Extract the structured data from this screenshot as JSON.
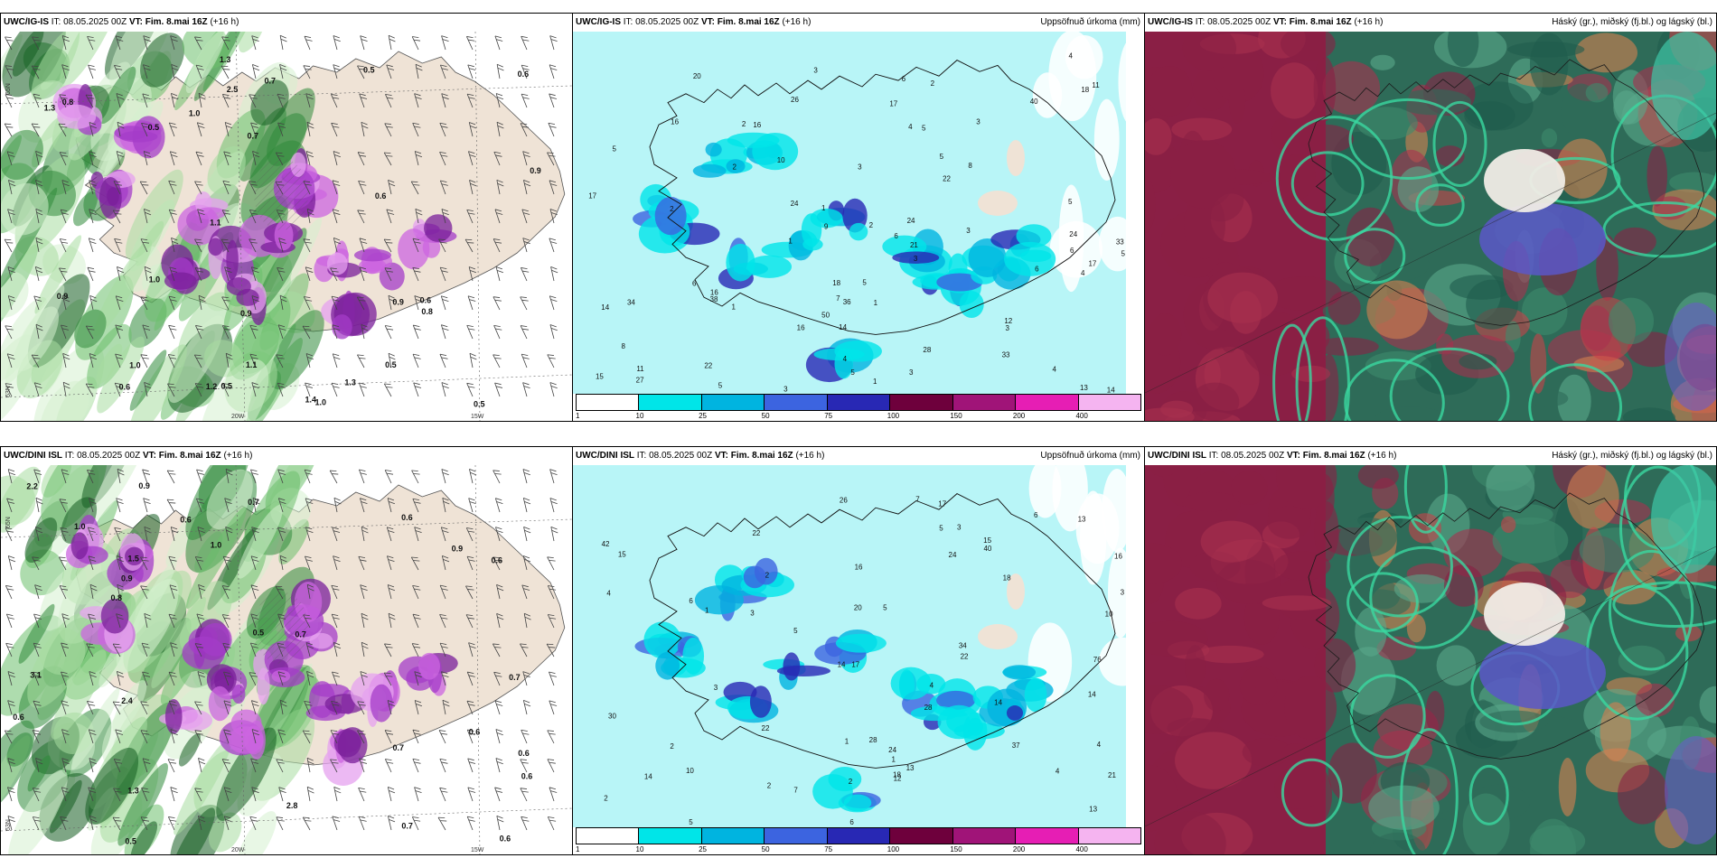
{
  "panels": [
    {
      "id": "p1",
      "model": "UWC/IG-IS",
      "it_label": "IT:",
      "it_value": "08.05.2025 00Z",
      "vt_label": "VT:",
      "vt_value": "Fim. 8.mai 16Z",
      "lead": "(+16 h)",
      "right_title": "",
      "type": "wind"
    },
    {
      "id": "p2",
      "model": "UWC/IG-IS",
      "it_label": "IT:",
      "it_value": "08.05.2025 00Z",
      "vt_label": "VT:",
      "vt_value": "Fim. 8.mai 16Z",
      "lead": "(+16 h)",
      "right_title": "Uppsöfnuð úrkoma (mm)",
      "type": "precip"
    },
    {
      "id": "p3",
      "model": "UWC/IG-IS",
      "it_label": "IT:",
      "it_value": "08.05.2025 00Z",
      "vt_label": "VT:",
      "vt_value": "Fim. 8.mai 16Z",
      "lead": "(+16 h)",
      "right_title": "Háský (gr.), miðský (fj.bl.) og lágský (bl.)",
      "type": "cloud"
    },
    {
      "id": "p4",
      "model": "UWC/DINI ISL",
      "it_label": "IT:",
      "it_value": "08.05.2025 00Z",
      "vt_label": "VT:",
      "vt_value": "Fim. 8.mai 16Z",
      "lead": "(+16 h)",
      "right_title": "",
      "type": "wind"
    },
    {
      "id": "p5",
      "model": "UWC/DINI ISL",
      "it_label": "IT:",
      "it_value": "08.05.2025 00Z",
      "vt_label": "VT:",
      "vt_value": "Fim. 8.mai 16Z",
      "lead": "(+16 h)",
      "right_title": "Uppsöfnuð úrkoma (mm)",
      "type": "precip"
    },
    {
      "id": "p6",
      "model": "UWC/DINI ISL",
      "it_label": "IT:",
      "it_value": "08.05.2025 00Z",
      "vt_label": "VT:",
      "vt_value": "Fim. 8.mai 16Z",
      "lead": "(+16 h)",
      "right_title": "Háský (gr.), miðský (fj.bl.) og lágský (bl.)",
      "type": "cloud"
    }
  ],
  "colorbar": {
    "colors": [
      "#ffffff",
      "#00e5e8",
      "#00b4e0",
      "#3c64e0",
      "#2828b4",
      "#6e003c",
      "#a01478",
      "#e61eb4",
      "#f5b4f0"
    ],
    "labels": [
      "1",
      "10",
      "25",
      "50",
      "75",
      "100",
      "150",
      "200",
      "400"
    ]
  },
  "wind_labels": {
    "p1": {
      "lat_labels": [
        "65N",
        "63N"
      ],
      "lon_labels": [
        "20W",
        "15W"
      ],
      "values": [
        "0.8",
        "0.9",
        "1.0",
        "0.6",
        "0.9",
        "0.7",
        "0.5",
        "0.9",
        "0.6",
        "0.5",
        "0.7",
        "0.6",
        "0.5",
        "1.0",
        "1.3",
        "0.8",
        "1.1",
        "1.0",
        "0.6",
        "0.9",
        "1.3",
        "1.4",
        "1.3",
        "1.0",
        "0.5",
        "1.2",
        "1.1",
        "2.5",
        "0.5"
      ]
    },
    "p4": {
      "lat_labels": [
        "65N",
        "63N"
      ],
      "lon_labels": [
        "20W",
        "15W"
      ],
      "values": [
        "0.6",
        "0.7",
        "0.6",
        "0.7",
        "0.8",
        "0.7",
        "0.6",
        "0.5",
        "0.6",
        "0.7",
        "1.0",
        "0.6",
        "0.6",
        "0.9",
        "1.0",
        "0.7",
        "0.6",
        "1.3",
        "0.9",
        "0.5",
        "0.6",
        "0.9",
        "2.4",
        "1.5",
        "2.2",
        "2.8",
        "3.1"
      ]
    }
  },
  "precip_values": {
    "p2": [
      "8",
      "5",
      "4",
      "1",
      "5",
      "5",
      "2",
      "1",
      "3",
      "6",
      "2",
      "3",
      "5",
      "12",
      "8",
      "6",
      "7",
      "4",
      "3",
      "4",
      "3",
      "2",
      "4",
      "1",
      "17",
      "14",
      "17",
      "18",
      "16",
      "10",
      "17",
      "11",
      "13",
      "20",
      "16",
      "14",
      "16",
      "18",
      "15",
      "33",
      "28",
      "22",
      "24",
      "38",
      "14",
      "16",
      "21",
      "24",
      "24",
      "34",
      "50",
      "36",
      "33",
      "40",
      "26",
      "22",
      "27",
      "11",
      "9",
      "6",
      "5",
      "5",
      "4",
      "3",
      "2",
      "3",
      "6",
      "3",
      "5",
      "3",
      "5",
      "2",
      "1",
      "1",
      "6"
    ],
    "p5": [
      "3",
      "3",
      "2",
      "5",
      "3",
      "7",
      "6",
      "5",
      "4",
      "2",
      "1",
      "16",
      "18",
      "10",
      "13",
      "7",
      "12",
      "18",
      "17",
      "15",
      "14",
      "13",
      "16",
      "17",
      "20",
      "24",
      "14",
      "15",
      "14",
      "13",
      "21",
      "22",
      "22",
      "28",
      "34",
      "24",
      "40",
      "37",
      "42",
      "76",
      "22",
      "30",
      "26",
      "28",
      "14",
      "5",
      "2",
      "4",
      "6",
      "4",
      "3",
      "2",
      "1",
      "1",
      "6",
      "5",
      "10",
      "4",
      "2"
    ]
  }
}
